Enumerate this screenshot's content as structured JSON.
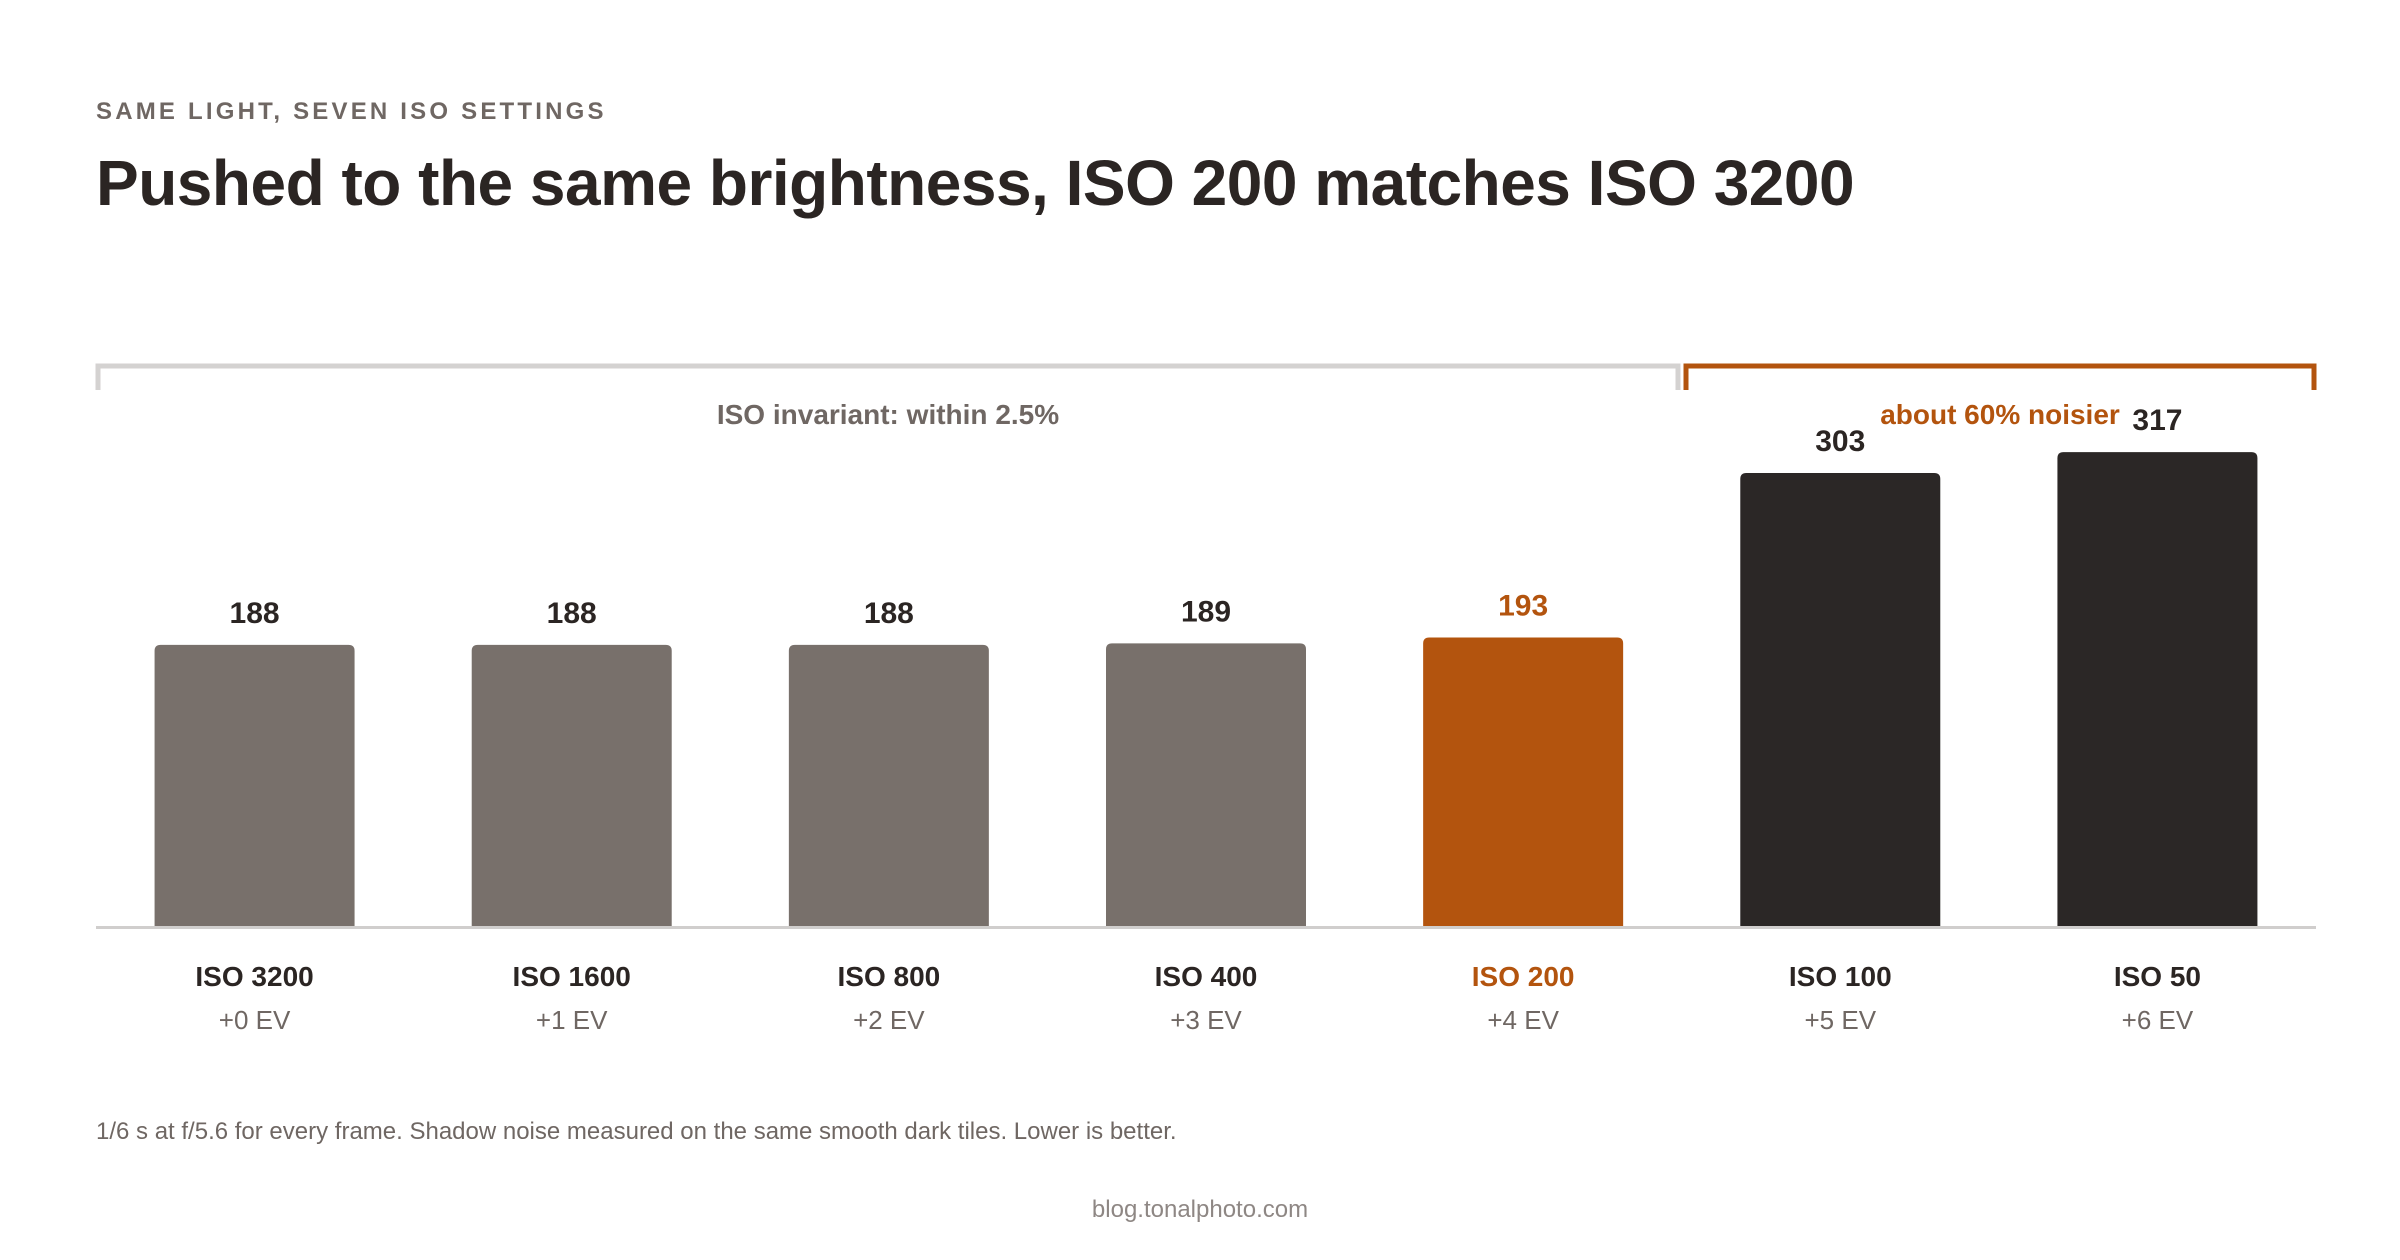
{
  "kicker": "SAME LIGHT, SEVEN ISO SETTINGS",
  "title": "Pushed to the same brightness, ISO 200 matches ISO 3200",
  "footnote": "1/6 s at f/5.6 for every frame. Shadow noise measured on the same smooth dark tiles. Lower is better.",
  "source": "blog.tonalphoto.com",
  "colors": {
    "neutral": "#78706b",
    "highlight": "#b3540e",
    "dark": "#2b2726",
    "bracket_neutral": "#d4d2d1",
    "baseline": "#d0cecd",
    "text_dark": "#2b2523",
    "text_muted": "#6f6763"
  },
  "chart_data": {
    "type": "bar",
    "categories": [
      "ISO 3200",
      "ISO 1600",
      "ISO 800",
      "ISO 400",
      "ISO 200",
      "ISO 100",
      "ISO 50"
    ],
    "sublabels": [
      "+0 EV",
      "+1 EV",
      "+2 EV",
      "+3 EV",
      "+4 EV",
      "+5 EV",
      "+6 EV"
    ],
    "values": [
      188,
      188,
      188,
      189,
      193,
      303,
      317
    ],
    "value_labels": [
      "188",
      "188",
      "188",
      "189",
      "193",
      "303",
      "317"
    ],
    "bar_colors": [
      "neutral",
      "neutral",
      "neutral",
      "neutral",
      "highlight",
      "dark",
      "dark"
    ],
    "ylim": [
      0,
      404
    ],
    "grid": false,
    "annotations": [
      {
        "text": "ISO invariant: within 2.5%",
        "from": 0,
        "to": 4,
        "color": "bracket_neutral",
        "text_color": "text_muted"
      },
      {
        "text": "about 60% noisier",
        "from": 5,
        "to": 6,
        "color": "highlight",
        "text_color": "highlight"
      }
    ]
  }
}
